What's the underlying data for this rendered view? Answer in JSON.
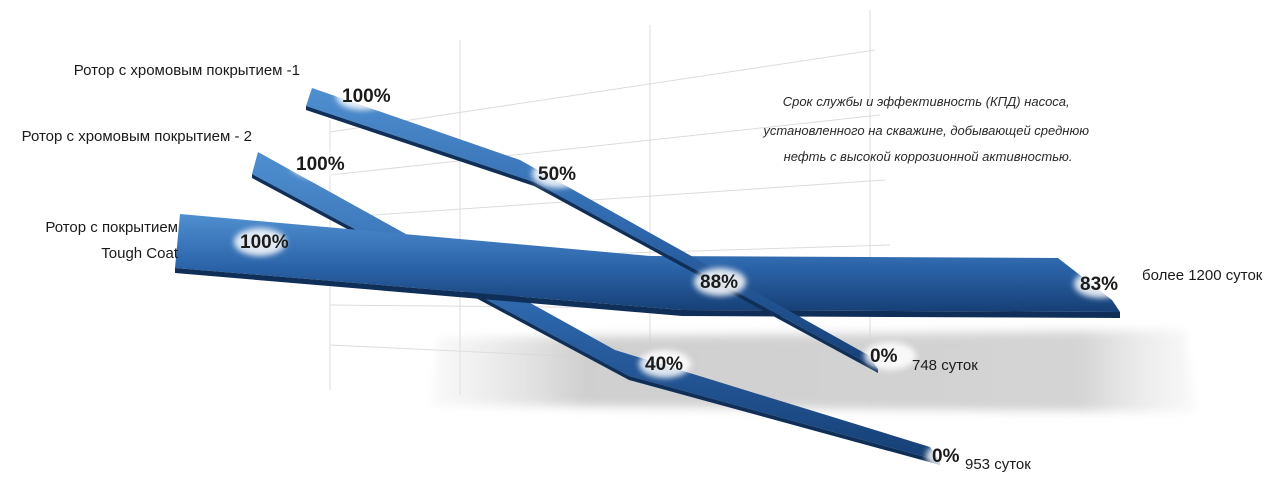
{
  "chart_data": {
    "type": "line",
    "title": "",
    "note_lines": [
      "Срок службы и эффективность (КПД) насоса,",
      "установленного на скважине, добывающей среднюю",
      "нефть с высокой коррозионной активностью."
    ],
    "xlabel": "",
    "ylabel": "",
    "ylim": [
      0,
      100
    ],
    "series": [
      {
        "name_lines": [
          "Ротор с хромовым покрытием -1"
        ],
        "points": [
          {
            "y": 100,
            "label": "100%"
          },
          {
            "y": 50,
            "label": "50%"
          },
          {
            "y": 0,
            "label": "0%"
          }
        ],
        "end_label": "748 суток"
      },
      {
        "name_lines": [
          "Ротор с хромовым покрытием - 2"
        ],
        "points": [
          {
            "y": 100,
            "label": "100%"
          },
          {
            "y": 40,
            "label": "40%"
          },
          {
            "y": 0,
            "label": "0%"
          }
        ],
        "end_label": "953 суток"
      },
      {
        "name_lines": [
          "Ротор с покрытием",
          "Tough Coat"
        ],
        "points": [
          {
            "y": 100,
            "label": "100%"
          },
          {
            "y": 88,
            "label": "88%"
          },
          {
            "y": 83,
            "label": "83%"
          }
        ],
        "end_label": "более 1200 суток"
      }
    ],
    "colors": {
      "ribbon_top": "#4a88c8",
      "ribbon_mid": "#2a62a6",
      "ribbon_dark": "#153e73",
      "grid": "#d9d9d9",
      "shadow": "#cfcfcf"
    }
  }
}
